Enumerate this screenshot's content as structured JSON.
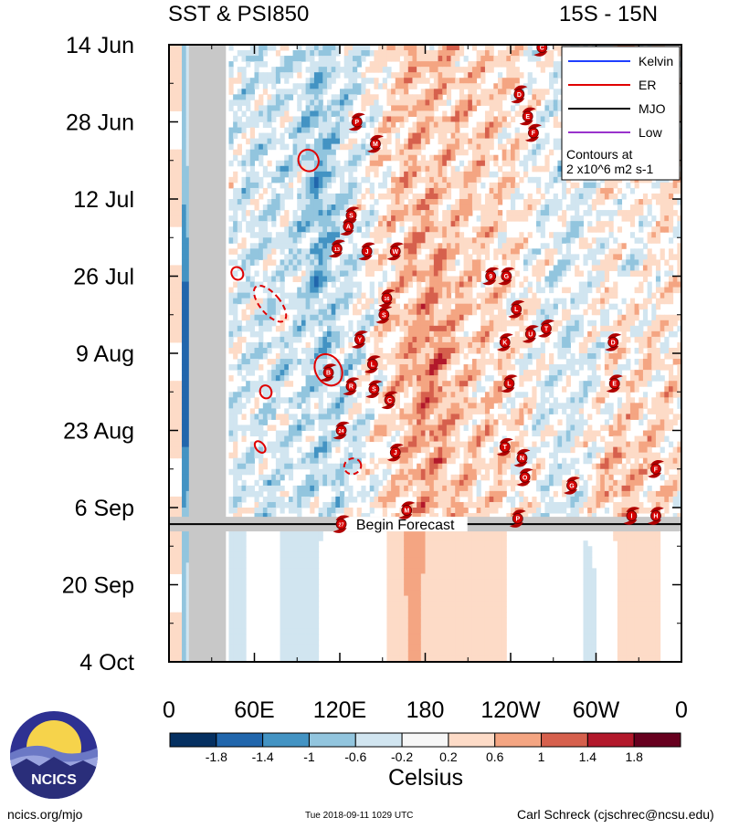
{
  "header": {
    "title_left": "SST & PSI850",
    "title_right": "15S - 15N"
  },
  "chart_data": {
    "type": "heatmap",
    "description": "Time-longitude Hovmoller of SST anomaly (shaded) with filtered 850hPa velocity potential contours and tropical cyclone tracks",
    "x_axis": {
      "range_deg_east": [
        0,
        360
      ],
      "ticks": [
        {
          "deg": 0,
          "label": "0"
        },
        {
          "deg": 60,
          "label": "60E"
        },
        {
          "deg": 120,
          "label": "120E"
        },
        {
          "deg": 180,
          "label": "180"
        },
        {
          "deg": 240,
          "label": "120W"
        },
        {
          "deg": 300,
          "label": "60W"
        },
        {
          "deg": 360,
          "label": "0"
        }
      ]
    },
    "y_axis": {
      "range_days_since_start": [
        0,
        112
      ],
      "start_label": "14 Jun",
      "ticks": [
        {
          "day": 0,
          "label": "14 Jun"
        },
        {
          "day": 14,
          "label": "28 Jun"
        },
        {
          "day": 28,
          "label": "12 Jul"
        },
        {
          "day": 42,
          "label": "26 Jul"
        },
        {
          "day": 56,
          "label": "9 Aug"
        },
        {
          "day": 70,
          "label": "23 Aug"
        },
        {
          "day": 84,
          "label": "6 Sep"
        },
        {
          "day": 98,
          "label": "20 Sep"
        },
        {
          "day": 112,
          "label": "4 Oct"
        }
      ]
    },
    "forecast": {
      "label": "Begin Forecast",
      "day": 87
    },
    "colorbar": {
      "label": "Celsius",
      "levels": [
        "-1.8",
        "-1.4",
        "-1",
        "-0.6",
        "-0.2",
        "0.2",
        "0.6",
        "1",
        "1.4",
        "1.8"
      ],
      "colors": [
        "#053061",
        "#2166ac",
        "#4393c3",
        "#92c5de",
        "#d1e5f0",
        "#f7f7f7",
        "#fddbc7",
        "#f4a582",
        "#d6604d",
        "#b2182b",
        "#67001f"
      ]
    },
    "legend": {
      "position": "top-right",
      "entries": [
        {
          "name": "Kelvin",
          "color": "#1f3fff",
          "style": "solid"
        },
        {
          "name": "ER",
          "color": "#e00000",
          "style": "solid"
        },
        {
          "name": "MJO",
          "color": "#000000",
          "style": "solid"
        },
        {
          "name": "Low",
          "color": "#9933cc",
          "style": "solid"
        }
      ],
      "note_line1": "Contours at",
      "note_line2": "2 x10^6 m2 s-1"
    },
    "er_contours": [
      {
        "lon": 98,
        "day": 21,
        "rx_deg": 7,
        "ry_days": 2.0,
        "angle": -25,
        "dashed": false
      },
      {
        "lon": 48,
        "day": 41.5,
        "rx_deg": 4,
        "ry_days": 1.2,
        "angle": -30,
        "dashed": false
      },
      {
        "lon": 71,
        "day": 47,
        "rx_deg": 7,
        "ry_days": 4.0,
        "angle": -40,
        "dashed": true
      },
      {
        "lon": 112,
        "day": 59,
        "rx_deg": 9,
        "ry_days": 3.0,
        "angle": -30,
        "dashed": false
      },
      {
        "lon": 68,
        "day": 63,
        "rx_deg": 4,
        "ry_days": 1.2,
        "angle": -20,
        "dashed": false
      },
      {
        "lon": 64,
        "day": 73,
        "rx_deg": 3,
        "ry_days": 1.2,
        "angle": -40,
        "dashed": false
      },
      {
        "lon": 129,
        "day": 76.5,
        "rx_deg": 6,
        "ry_days": 1.4,
        "angle": -20,
        "dashed": true
      }
    ],
    "cyclones": [
      {
        "label": "C",
        "lon": 262,
        "day": 0.5
      },
      {
        "label": "D",
        "lon": 246,
        "day": 9
      },
      {
        "label": "E",
        "lon": 252,
        "day": 13
      },
      {
        "label": "F",
        "lon": 256,
        "day": 16
      },
      {
        "label": "P",
        "lon": 132,
        "day": 14
      },
      {
        "label": "M",
        "lon": 145,
        "day": 18
      },
      {
        "label": "S",
        "lon": 128,
        "day": 31
      },
      {
        "label": "A",
        "lon": 126,
        "day": 33
      },
      {
        "label": "13",
        "lon": 118,
        "day": 37
      },
      {
        "label": "J",
        "lon": 139,
        "day": 37.5
      },
      {
        "label": "W",
        "lon": 159,
        "day": 37.5
      },
      {
        "label": "9",
        "lon": 226,
        "day": 42
      },
      {
        "label": "G",
        "lon": 237,
        "day": 42
      },
      {
        "label": "16",
        "lon": 153,
        "day": 46
      },
      {
        "label": "S",
        "lon": 151,
        "day": 49
      },
      {
        "label": "Y",
        "lon": 134,
        "day": 53.5
      },
      {
        "label": "B",
        "lon": 112,
        "day": 59.5
      },
      {
        "label": "L",
        "lon": 143,
        "day": 58
      },
      {
        "label": "R",
        "lon": 128,
        "day": 62
      },
      {
        "label": "S",
        "lon": 144,
        "day": 62.5
      },
      {
        "label": "C",
        "lon": 155,
        "day": 64.5
      },
      {
        "label": "24",
        "lon": 121,
        "day": 70
      },
      {
        "label": "J",
        "lon": 159,
        "day": 74
      },
      {
        "label": "K",
        "lon": 236,
        "day": 54
      },
      {
        "label": "U",
        "lon": 254,
        "day": 52.5
      },
      {
        "label": "T",
        "lon": 265,
        "day": 51.5
      },
      {
        "label": "L",
        "lon": 244,
        "day": 48
      },
      {
        "label": "D",
        "lon": 312,
        "day": 54
      },
      {
        "label": "L",
        "lon": 239,
        "day": 61.5
      },
      {
        "label": "E",
        "lon": 313,
        "day": 61.5
      },
      {
        "label": "T",
        "lon": 236,
        "day": 73
      },
      {
        "label": "N",
        "lon": 248,
        "day": 75
      },
      {
        "label": "O",
        "lon": 250,
        "day": 78.5
      },
      {
        "label": "G",
        "lon": 283,
        "day": 80
      },
      {
        "label": "F",
        "lon": 342,
        "day": 77
      },
      {
        "label": "M",
        "lon": 167,
        "day": 84.5
      },
      {
        "label": "P",
        "lon": 245,
        "day": 86
      },
      {
        "label": "I",
        "lon": 325,
        "day": 85.5
      },
      {
        "label": "H",
        "lon": 342,
        "day": 85.5
      },
      {
        "label": "27",
        "lon": 121,
        "day": 87
      }
    ]
  },
  "footer": {
    "logo_text": "NCICS",
    "url": "ncics.org/mjo",
    "timestamp": "Tue 2018-09-11 1029 UTC",
    "author": "Carl Schreck (cjschrec@ncsu.edu)"
  }
}
